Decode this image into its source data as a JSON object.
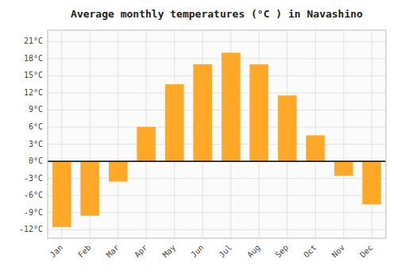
{
  "chart_data": {
    "type": "bar",
    "title": "Average monthly temperatures (°C ) in Navashino",
    "categories": [
      "Jan",
      "Feb",
      "Mar",
      "Apr",
      "May",
      "Jun",
      "Jul",
      "Aug",
      "Sep",
      "Oct",
      "Nov",
      "Dec"
    ],
    "values": [
      -11.5,
      -9.5,
      -3.5,
      6.0,
      13.5,
      17.0,
      19.0,
      17.0,
      11.5,
      4.5,
      -2.5,
      -7.5
    ],
    "color": "#FFA726",
    "ylim": [
      -13.5,
      23
    ],
    "yticks": [
      {
        "value": -12,
        "label": "-12°C"
      },
      {
        "value": -9,
        "label": "-9°C"
      },
      {
        "value": -6,
        "label": "-6°C"
      },
      {
        "value": -3,
        "label": "-3°C"
      },
      {
        "value": 0,
        "label": "0°C"
      },
      {
        "value": 3,
        "label": "3°C"
      },
      {
        "value": 6,
        "label": "6°C"
      },
      {
        "value": 9,
        "label": "9°C"
      },
      {
        "value": 12,
        "label": "12°C"
      },
      {
        "value": 15,
        "label": "15°C"
      },
      {
        "value": 18,
        "label": "18°C"
      },
      {
        "value": 21,
        "label": "21°C"
      }
    ],
    "grid": true
  }
}
